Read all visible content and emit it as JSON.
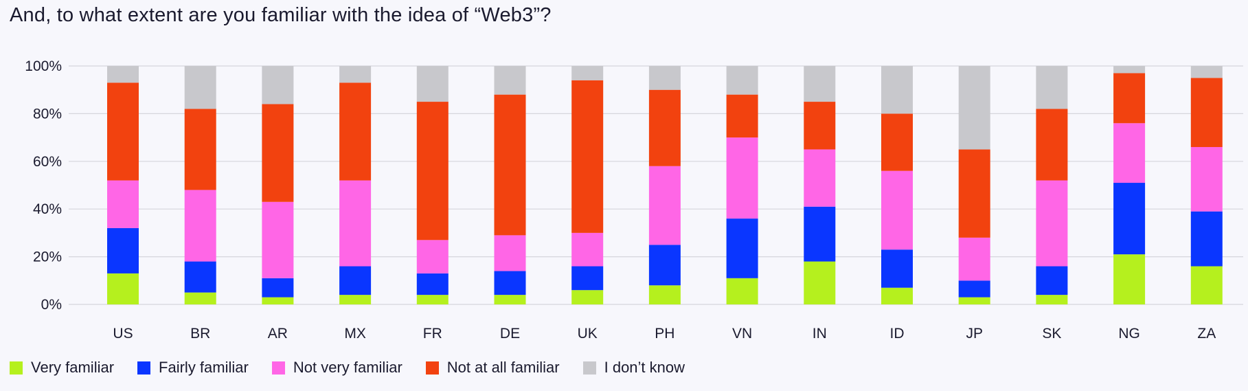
{
  "chart_data": {
    "type": "bar",
    "stacked": true,
    "title": "And, to what extent are you familiar with the idea of “Web3”?",
    "categories": [
      "US",
      "BR",
      "AR",
      "MX",
      "FR",
      "DE",
      "UK",
      "PH",
      "VN",
      "IN",
      "ID",
      "JP",
      "SK",
      "NG",
      "ZA"
    ],
    "y_ticks": [
      "0%",
      "20%",
      "40%",
      "60%",
      "80%",
      "100%"
    ],
    "ylim": [
      0,
      100
    ],
    "grid": true,
    "legend_position": "bottom-left",
    "series": [
      {
        "name": "Very familiar",
        "color": "#b5f01e",
        "values": [
          13,
          5,
          3,
          4,
          4,
          4,
          6,
          8,
          11,
          18,
          7,
          3,
          4,
          21,
          16
        ]
      },
      {
        "name": "Fairly familiar",
        "color": "#0a36ff",
        "values": [
          19,
          13,
          8,
          12,
          9,
          10,
          10,
          17,
          25,
          23,
          16,
          7,
          12,
          30,
          23
        ]
      },
      {
        "name": "Not very familiar",
        "color": "#ff66e6",
        "values": [
          20,
          30,
          32,
          36,
          14,
          15,
          14,
          33,
          34,
          24,
          33,
          18,
          36,
          25,
          27
        ]
      },
      {
        "name": "Not at all familiar",
        "color": "#f2420f",
        "values": [
          41,
          34,
          41,
          41,
          58,
          59,
          64,
          32,
          18,
          20,
          24,
          37,
          30,
          21,
          29
        ]
      },
      {
        "name": "I don’t know",
        "color": "#c8c8cc",
        "values": [
          7,
          18,
          16,
          7,
          15,
          12,
          6,
          10,
          12,
          15,
          20,
          35,
          18,
          3,
          5
        ]
      }
    ]
  }
}
